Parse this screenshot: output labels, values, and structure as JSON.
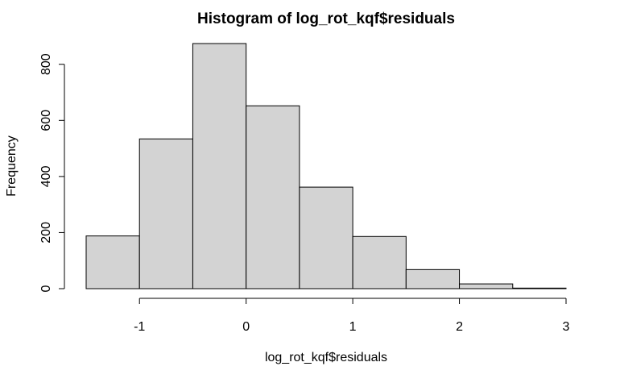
{
  "chart_data": {
    "type": "bar",
    "title": "Histogram of log_rot_kqf$residuals",
    "xlabel": "log_rot_kqf$residuals",
    "ylabel": "Frequency",
    "bins": [
      {
        "start": -1.5,
        "end": -1.0,
        "count": 188
      },
      {
        "start": -1.0,
        "end": -0.5,
        "count": 534
      },
      {
        "start": -0.5,
        "end": 0.0,
        "count": 874
      },
      {
        "start": 0.0,
        "end": 0.5,
        "count": 652
      },
      {
        "start": 0.5,
        "end": 1.0,
        "count": 362
      },
      {
        "start": 1.0,
        "end": 1.5,
        "count": 186
      },
      {
        "start": 1.5,
        "end": 2.0,
        "count": 68
      },
      {
        "start": 2.0,
        "end": 2.5,
        "count": 17
      },
      {
        "start": 2.5,
        "end": 3.0,
        "count": 2
      }
    ],
    "x_ticks": [
      "-1",
      "0",
      "1",
      "2",
      "3"
    ],
    "y_ticks": [
      "0",
      "200",
      "400",
      "600",
      "800"
    ],
    "xlim": [
      -1.5,
      3.0
    ],
    "ylim": [
      0,
      874
    ],
    "grid": false,
    "colors": {
      "bar_fill": "#d3d3d3",
      "bar_stroke": "#000000"
    }
  }
}
